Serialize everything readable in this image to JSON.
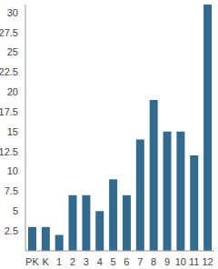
{
  "chart_data": {
    "type": "bar",
    "categories": [
      "PK",
      "K",
      "1",
      "2",
      "3",
      "4",
      "5",
      "6",
      "7",
      "8",
      "9",
      "10",
      "11",
      "12"
    ],
    "values": [
      3,
      3,
      2,
      7,
      7,
      5,
      9,
      7,
      14,
      19,
      15,
      15,
      12,
      31
    ],
    "color": "#346a8e",
    "ylim": [
      0,
      31
    ],
    "yticks": [
      2.5,
      5,
      7.5,
      10,
      12.5,
      15,
      17.5,
      20,
      22.5,
      25,
      27.5,
      30
    ],
    "grid": false
  }
}
